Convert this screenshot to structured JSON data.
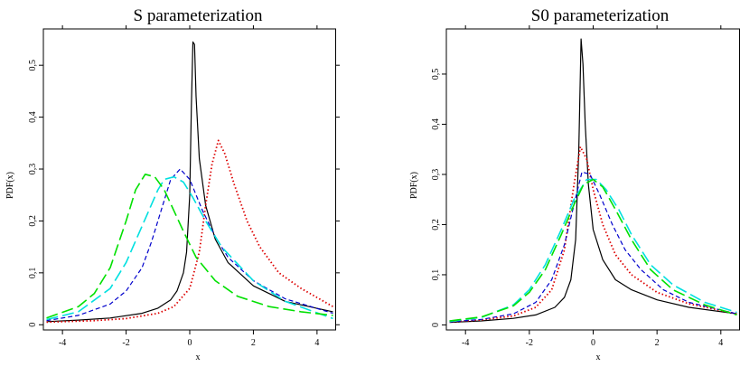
{
  "chart_data": [
    {
      "type": "line",
      "title": "S parameterization",
      "xlabel": "x",
      "ylabel": "PDF(x)",
      "xlim": [
        -4.6,
        4.6
      ],
      "ylim": [
        -0.01,
        0.57
      ],
      "xticks": [
        "-4",
        "-2",
        "0",
        "2",
        "4"
      ],
      "yticks": [
        "0",
        "0,1",
        "0,2",
        "0,3",
        "0,4",
        "0,5"
      ],
      "grid": false,
      "legend": "none",
      "series": [
        {
          "color": "#000000",
          "dash": "solid",
          "x": [
            -4.5,
            -3.5,
            -2.5,
            -1.5,
            -1.0,
            -0.6,
            -0.4,
            -0.2,
            -0.1,
            0.0,
            0.05,
            0.1,
            0.15,
            0.2,
            0.3,
            0.5,
            0.8,
            1.2,
            2.0,
            3.0,
            4.5
          ],
          "y": [
            0.006,
            0.009,
            0.013,
            0.022,
            0.032,
            0.048,
            0.065,
            0.1,
            0.14,
            0.25,
            0.42,
            0.545,
            0.54,
            0.44,
            0.32,
            0.23,
            0.165,
            0.12,
            0.075,
            0.045,
            0.025
          ]
        },
        {
          "color": "#dd0000",
          "dash": "dotted",
          "x": [
            -4.5,
            -3.0,
            -2.0,
            -1.0,
            -0.5,
            0.0,
            0.3,
            0.5,
            0.7,
            0.9,
            1.1,
            1.4,
            1.8,
            2.2,
            2.8,
            3.5,
            4.5
          ],
          "y": [
            0.005,
            0.008,
            0.012,
            0.022,
            0.035,
            0.07,
            0.14,
            0.23,
            0.31,
            0.355,
            0.33,
            0.27,
            0.2,
            0.15,
            0.1,
            0.07,
            0.035
          ]
        },
        {
          "color": "#0000cc",
          "dash": "dashed",
          "x": [
            -4.5,
            -3.5,
            -2.5,
            -2.0,
            -1.5,
            -1.2,
            -0.9,
            -0.6,
            -0.3,
            0.0,
            0.4,
            0.8,
            1.2,
            2.0,
            3.0,
            4.5
          ],
          "y": [
            0.008,
            0.018,
            0.04,
            0.065,
            0.11,
            0.16,
            0.22,
            0.28,
            0.3,
            0.28,
            0.22,
            0.17,
            0.13,
            0.085,
            0.05,
            0.022
          ]
        },
        {
          "color": "#00e0e0",
          "dash": "longdash",
          "x": [
            -4.5,
            -3.5,
            -2.5,
            -2.0,
            -1.5,
            -1.0,
            -0.8,
            -0.5,
            -0.2,
            0.1,
            0.5,
            1.0,
            2.0,
            3.0,
            4.5
          ],
          "y": [
            0.01,
            0.025,
            0.07,
            0.12,
            0.19,
            0.26,
            0.28,
            0.285,
            0.275,
            0.245,
            0.2,
            0.15,
            0.085,
            0.045,
            0.012
          ]
        },
        {
          "color": "#00e000",
          "dash": "longdash",
          "x": [
            -4.5,
            -3.5,
            -3.0,
            -2.5,
            -2.0,
            -1.7,
            -1.4,
            -1.1,
            -0.8,
            -0.5,
            -0.2,
            0.2,
            0.8,
            1.5,
            2.5,
            3.5,
            4.5
          ],
          "y": [
            0.013,
            0.035,
            0.06,
            0.11,
            0.2,
            0.26,
            0.29,
            0.285,
            0.26,
            0.22,
            0.18,
            0.13,
            0.085,
            0.055,
            0.035,
            0.025,
            0.018
          ]
        }
      ]
    },
    {
      "type": "line",
      "title": "S0 parameterization",
      "xlabel": "x",
      "ylabel": "PDF(x)",
      "xlim": [
        -4.6,
        4.6
      ],
      "ylim": [
        -0.01,
        0.59
      ],
      "xticks": [
        "-4",
        "-2",
        "0",
        "2",
        "4"
      ],
      "yticks": [
        "0",
        "0,1",
        "0,2",
        "0,3",
        "0,4",
        "0,5"
      ],
      "grid": false,
      "legend": "none",
      "series": [
        {
          "color": "#000000",
          "dash": "solid",
          "x": [
            -4.5,
            -3.5,
            -2.5,
            -1.8,
            -1.2,
            -0.9,
            -0.7,
            -0.55,
            -0.45,
            -0.38,
            -0.32,
            -0.25,
            -0.15,
            0.0,
            0.3,
            0.7,
            1.2,
            2.0,
            3.0,
            4.5
          ],
          "y": [
            0.005,
            0.008,
            0.013,
            0.02,
            0.035,
            0.055,
            0.09,
            0.17,
            0.35,
            0.57,
            0.52,
            0.4,
            0.28,
            0.19,
            0.13,
            0.09,
            0.07,
            0.05,
            0.035,
            0.022
          ]
        },
        {
          "color": "#dd0000",
          "dash": "dotted",
          "x": [
            -4.5,
            -3.5,
            -2.5,
            -1.8,
            -1.3,
            -0.9,
            -0.6,
            -0.4,
            -0.2,
            0.0,
            0.3,
            0.7,
            1.2,
            2.0,
            3.0,
            4.5
          ],
          "y": [
            0.006,
            0.01,
            0.018,
            0.035,
            0.07,
            0.15,
            0.28,
            0.355,
            0.33,
            0.27,
            0.2,
            0.14,
            0.1,
            0.065,
            0.042,
            0.022
          ]
        },
        {
          "color": "#0000cc",
          "dash": "dashed",
          "x": [
            -4.5,
            -3.5,
            -2.5,
            -1.8,
            -1.3,
            -0.9,
            -0.6,
            -0.35,
            -0.1,
            0.2,
            0.6,
            1.0,
            1.5,
            2.2,
            3.0,
            4.5
          ],
          "y": [
            0.006,
            0.011,
            0.022,
            0.045,
            0.09,
            0.16,
            0.24,
            0.305,
            0.3,
            0.26,
            0.2,
            0.15,
            0.11,
            0.07,
            0.045,
            0.022
          ]
        },
        {
          "color": "#00e0e0",
          "dash": "longdash",
          "x": [
            -4.5,
            -3.5,
            -2.5,
            -2.0,
            -1.5,
            -1.0,
            -0.6,
            -0.2,
            0.1,
            0.4,
            0.8,
            1.2,
            1.8,
            2.5,
            3.5,
            4.5
          ],
          "y": [
            0.007,
            0.015,
            0.04,
            0.07,
            0.12,
            0.19,
            0.25,
            0.29,
            0.29,
            0.27,
            0.23,
            0.18,
            0.12,
            0.08,
            0.045,
            0.025
          ]
        },
        {
          "color": "#00e000",
          "dash": "longdash",
          "x": [
            -4.5,
            -3.5,
            -2.5,
            -2.0,
            -1.5,
            -1.0,
            -0.6,
            -0.3,
            0.0,
            0.3,
            0.7,
            1.2,
            1.8,
            2.5,
            3.5,
            4.5
          ],
          "y": [
            0.008,
            0.016,
            0.038,
            0.065,
            0.11,
            0.18,
            0.24,
            0.28,
            0.29,
            0.275,
            0.23,
            0.17,
            0.11,
            0.07,
            0.04,
            0.02
          ]
        }
      ]
    }
  ]
}
